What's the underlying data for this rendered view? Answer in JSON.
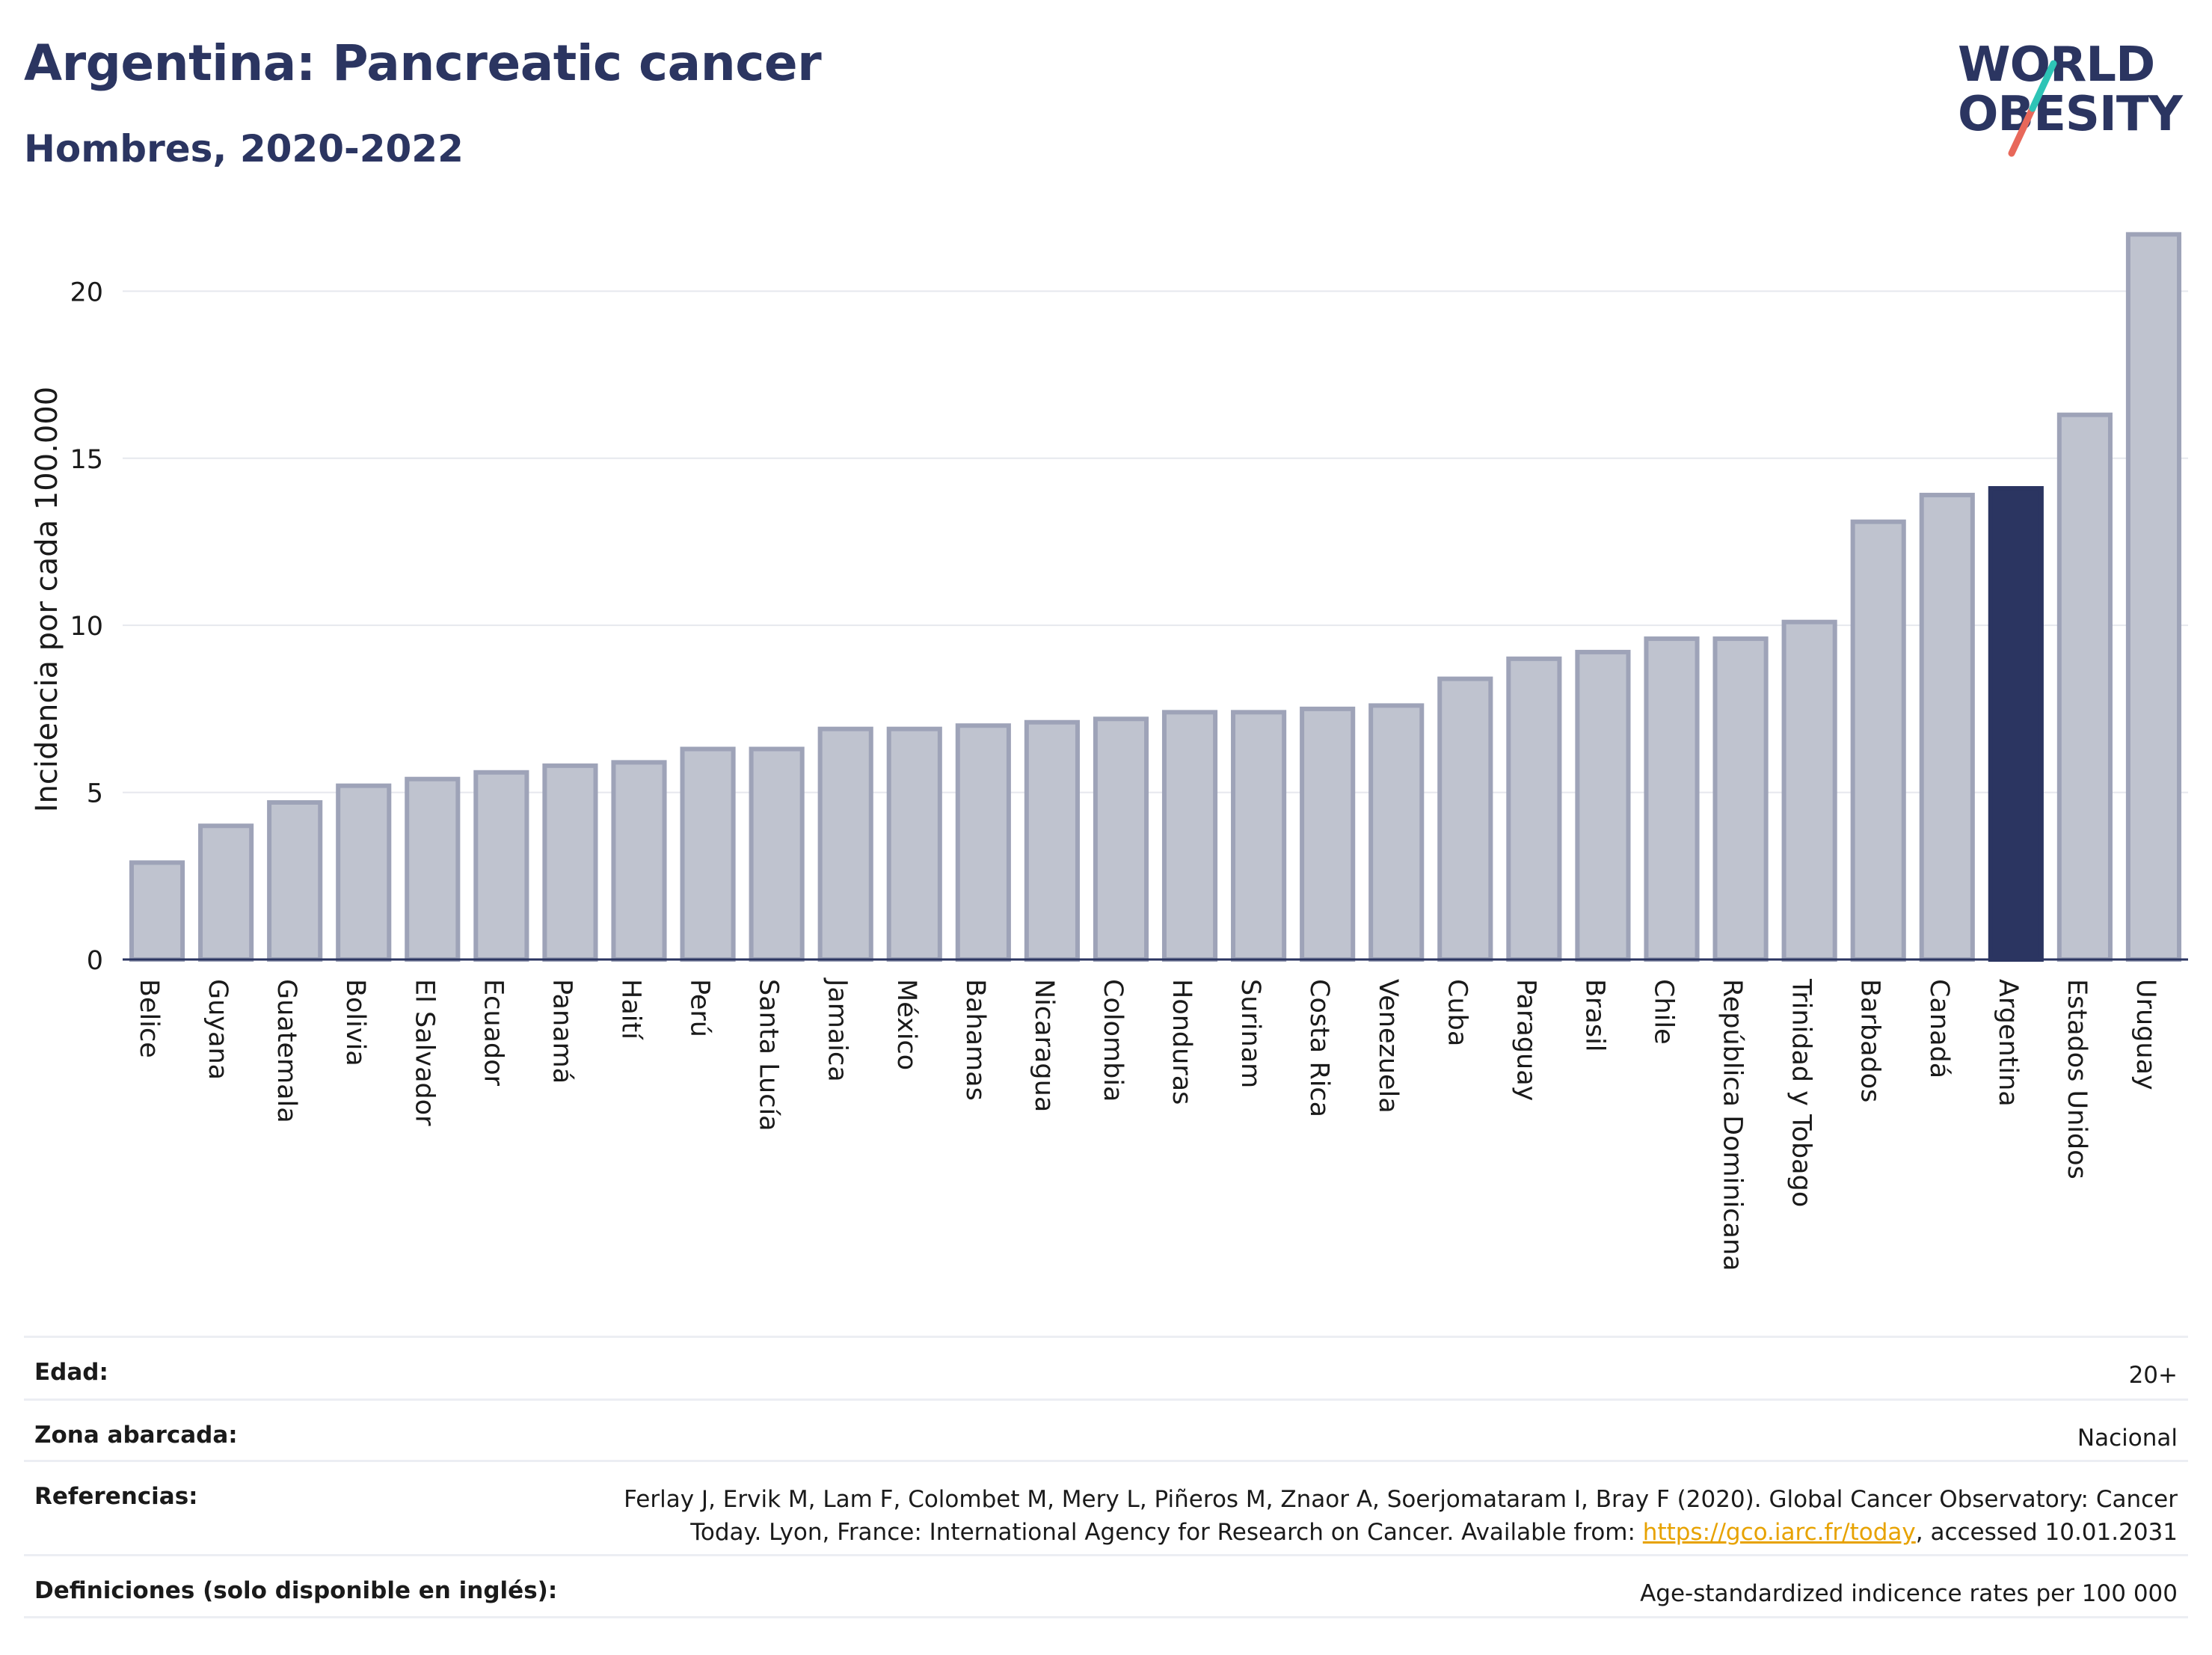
{
  "header": {
    "title": "Argentina: Pancreatic cancer",
    "subtitle": "Hombres, 2020-2022"
  },
  "logo": {
    "line1": "WORLD",
    "line2": "OBESITY",
    "accent_colors": [
      "#2ec4b6",
      "#e8685a"
    ]
  },
  "colors": {
    "bar_default": "#bfc3cf",
    "bar_border": "#9ea3b8",
    "bar_highlight": "#2b3561",
    "grid": "#e6e8ee",
    "axis": "#2b3561"
  },
  "chart_data": {
    "type": "bar",
    "ylabel": "Incidencia por cada 100.000",
    "ylim": [
      0,
      22
    ],
    "yticks": [
      0,
      5,
      10,
      15,
      20
    ],
    "grid": true,
    "highlight": "Argentina",
    "categories": [
      "Belice",
      "Guyana",
      "Guatemala",
      "Bolivia",
      "El Salvador",
      "Ecuador",
      "Panamá",
      "Haití",
      "Perú",
      "Santa Lucía",
      "Jamaica",
      "México",
      "Bahamas",
      "Nicaragua",
      "Colombia",
      "Honduras",
      "Surinam",
      "Costa Rica",
      "Venezuela",
      "Cuba",
      "Paraguay",
      "Brasil",
      "Chile",
      "República Dominicana",
      "Trinidad y Tobago",
      "Barbados",
      "Canadá",
      "Argentina",
      "Estados Unidos",
      "Uruguay"
    ],
    "values": [
      2.9,
      4.0,
      4.7,
      5.2,
      5.4,
      5.6,
      5.8,
      5.9,
      6.3,
      6.3,
      6.9,
      6.9,
      7.0,
      7.1,
      7.2,
      7.4,
      7.4,
      7.5,
      7.6,
      8.4,
      9.0,
      9.2,
      9.6,
      9.6,
      10.1,
      13.1,
      13.9,
      14.1,
      16.3,
      21.7
    ]
  },
  "meta": {
    "edad": {
      "label": "Edad:",
      "value": "20+"
    },
    "zona": {
      "label": "Zona abarcada:",
      "value": "Nacional"
    },
    "referencias": {
      "label": "Referencias:",
      "text1": "Ferlay J, Ervik M, Lam F, Colombet M, Mery L, Piñeros M, Znaor A, Soerjomataram I, Bray F (2020). Global Cancer Observatory: Cancer",
      "text2": "Today. Lyon, France: International Agency for Research on Cancer. Available from: ",
      "link": "https://gco.iarc.fr/today",
      "text3": ", accessed 10.01.2031"
    },
    "definiciones": {
      "label": "Definiciones (solo disponible en inglés):",
      "value": "Age-standardized indicence rates per 100 000"
    }
  }
}
